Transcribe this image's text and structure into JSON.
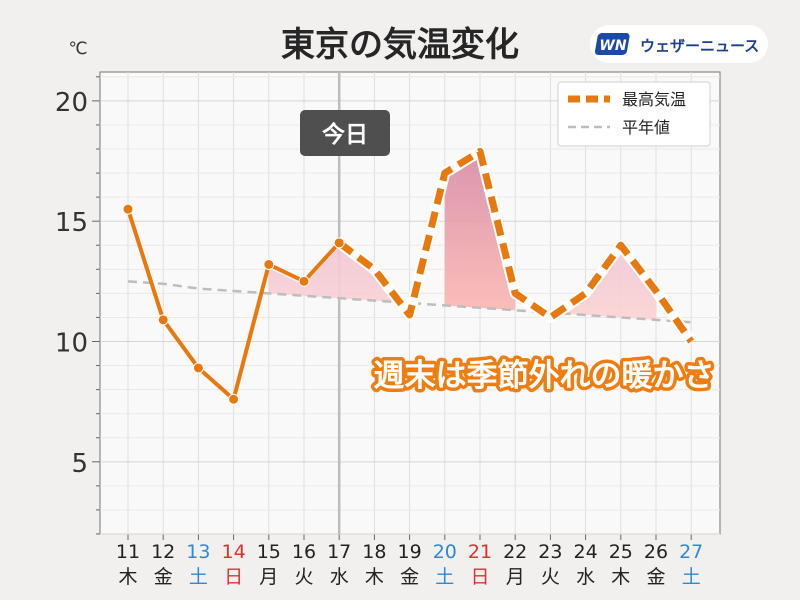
{
  "chart_data": {
    "type": "line",
    "title": "東京の気温変化",
    "unit": "℃",
    "brand": "ウェザーニュース",
    "brand_logo": "WN",
    "today_label": "今日",
    "today_index": 6,
    "annotation": "週末は季節外れの暖かさ",
    "ylim": [
      2,
      21.2
    ],
    "yticks": [
      5,
      10,
      15,
      20
    ],
    "grid": true,
    "legend_position": "top-right",
    "categories": [
      {
        "day": "11",
        "weekday": "木",
        "type": "weekday"
      },
      {
        "day": "12",
        "weekday": "金",
        "type": "weekday"
      },
      {
        "day": "13",
        "weekday": "土",
        "type": "saturday"
      },
      {
        "day": "14",
        "weekday": "日",
        "type": "sunday"
      },
      {
        "day": "15",
        "weekday": "月",
        "type": "weekday"
      },
      {
        "day": "16",
        "weekday": "火",
        "type": "weekday"
      },
      {
        "day": "17",
        "weekday": "水",
        "type": "weekday"
      },
      {
        "day": "18",
        "weekday": "木",
        "type": "weekday"
      },
      {
        "day": "19",
        "weekday": "金",
        "type": "weekday"
      },
      {
        "day": "20",
        "weekday": "土",
        "type": "saturday"
      },
      {
        "day": "21",
        "weekday": "日",
        "type": "sunday"
      },
      {
        "day": "22",
        "weekday": "月",
        "type": "weekday"
      },
      {
        "day": "23",
        "weekday": "火",
        "type": "weekday"
      },
      {
        "day": "24",
        "weekday": "水",
        "type": "weekday"
      },
      {
        "day": "25",
        "weekday": "木",
        "type": "weekday"
      },
      {
        "day": "26",
        "weekday": "金",
        "type": "weekday"
      },
      {
        "day": "27",
        "weekday": "土",
        "type": "saturday"
      }
    ],
    "series": [
      {
        "name": "最高気温",
        "style": "observed-solid-then-forecast-dashed",
        "color": "#e8790f",
        "values": [
          15.5,
          10.9,
          8.9,
          7.6,
          13.2,
          12.5,
          14.1,
          13.0,
          11.1,
          17.0,
          17.9,
          12.0,
          11.0,
          12.0,
          14.0,
          12.1,
          10.0
        ]
      },
      {
        "name": "平年値",
        "style": "dashed",
        "color": "#bdbdbd",
        "values": [
          12.5,
          12.4,
          12.2,
          12.1,
          12.0,
          11.9,
          11.8,
          11.7,
          11.6,
          11.5,
          11.4,
          11.3,
          11.2,
          11.1,
          11.0,
          10.9,
          10.8
        ]
      }
    ],
    "colors": {
      "saturday": "#2f88d6",
      "sunday": "#d9332b",
      "weekday": "#222222",
      "fill": "#f0a0ac",
      "today_badge": "#4f4f4f"
    }
  }
}
